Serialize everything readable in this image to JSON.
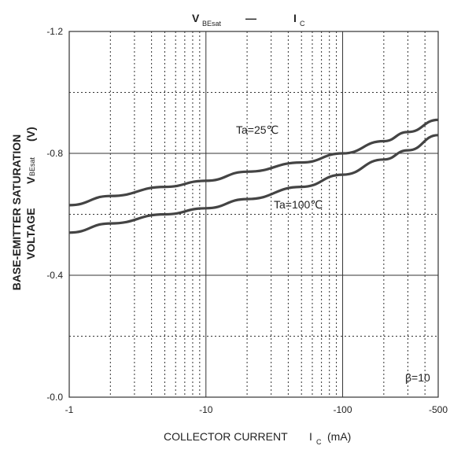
{
  "chart_data": {
    "type": "line",
    "title": {
      "y_symbol": "V",
      "y_subscript": "BEsat",
      "dash": "—",
      "x_symbol": "I",
      "x_subscript": "C"
    },
    "xlabel": {
      "text": "COLLECTOR CURRENT",
      "symbol": "I",
      "subscript": "C",
      "unit": "(mA)"
    },
    "ylabel": {
      "line1": "BASE-EMITTER SATURATION",
      "line2_text": "VOLTAGE",
      "line2_symbol": "V",
      "line2_subscript": "BEsat",
      "line2_unit": "(V)"
    },
    "x_scale": "log",
    "xlim": [
      -1,
      -500
    ],
    "ylim": [
      -0.0,
      -1.2
    ],
    "x_ticks": [
      {
        "value": -1,
        "label": "-1"
      },
      {
        "value": -10,
        "label": "-10"
      },
      {
        "value": -100,
        "label": "-100"
      },
      {
        "value": -500,
        "label": "-500"
      }
    ],
    "y_ticks": [
      {
        "value": -0.0,
        "label": "-0.0"
      },
      {
        "value": -0.4,
        "label": "-0.4"
      },
      {
        "value": -0.8,
        "label": "-0.8"
      },
      {
        "value": -1.2,
        "label": "-1.2"
      }
    ],
    "grid": true,
    "annotation": "β=10",
    "series": [
      {
        "name": "Ta=25℃",
        "color": "#444444",
        "x": [
          -1,
          -2,
          -5,
          -10,
          -20,
          -50,
          -100,
          -200,
          -300,
          -500
        ],
        "y": [
          -0.63,
          -0.66,
          -0.69,
          -0.71,
          -0.74,
          -0.77,
          -0.8,
          -0.84,
          -0.87,
          -0.91
        ]
      },
      {
        "name": "Ta=100℃",
        "color": "#444444",
        "x": [
          -1,
          -2,
          -5,
          -10,
          -20,
          -50,
          -100,
          -200,
          -300,
          -500
        ],
        "y": [
          -0.54,
          -0.57,
          -0.6,
          -0.62,
          -0.65,
          -0.69,
          -0.73,
          -0.78,
          -0.81,
          -0.86
        ]
      }
    ]
  }
}
